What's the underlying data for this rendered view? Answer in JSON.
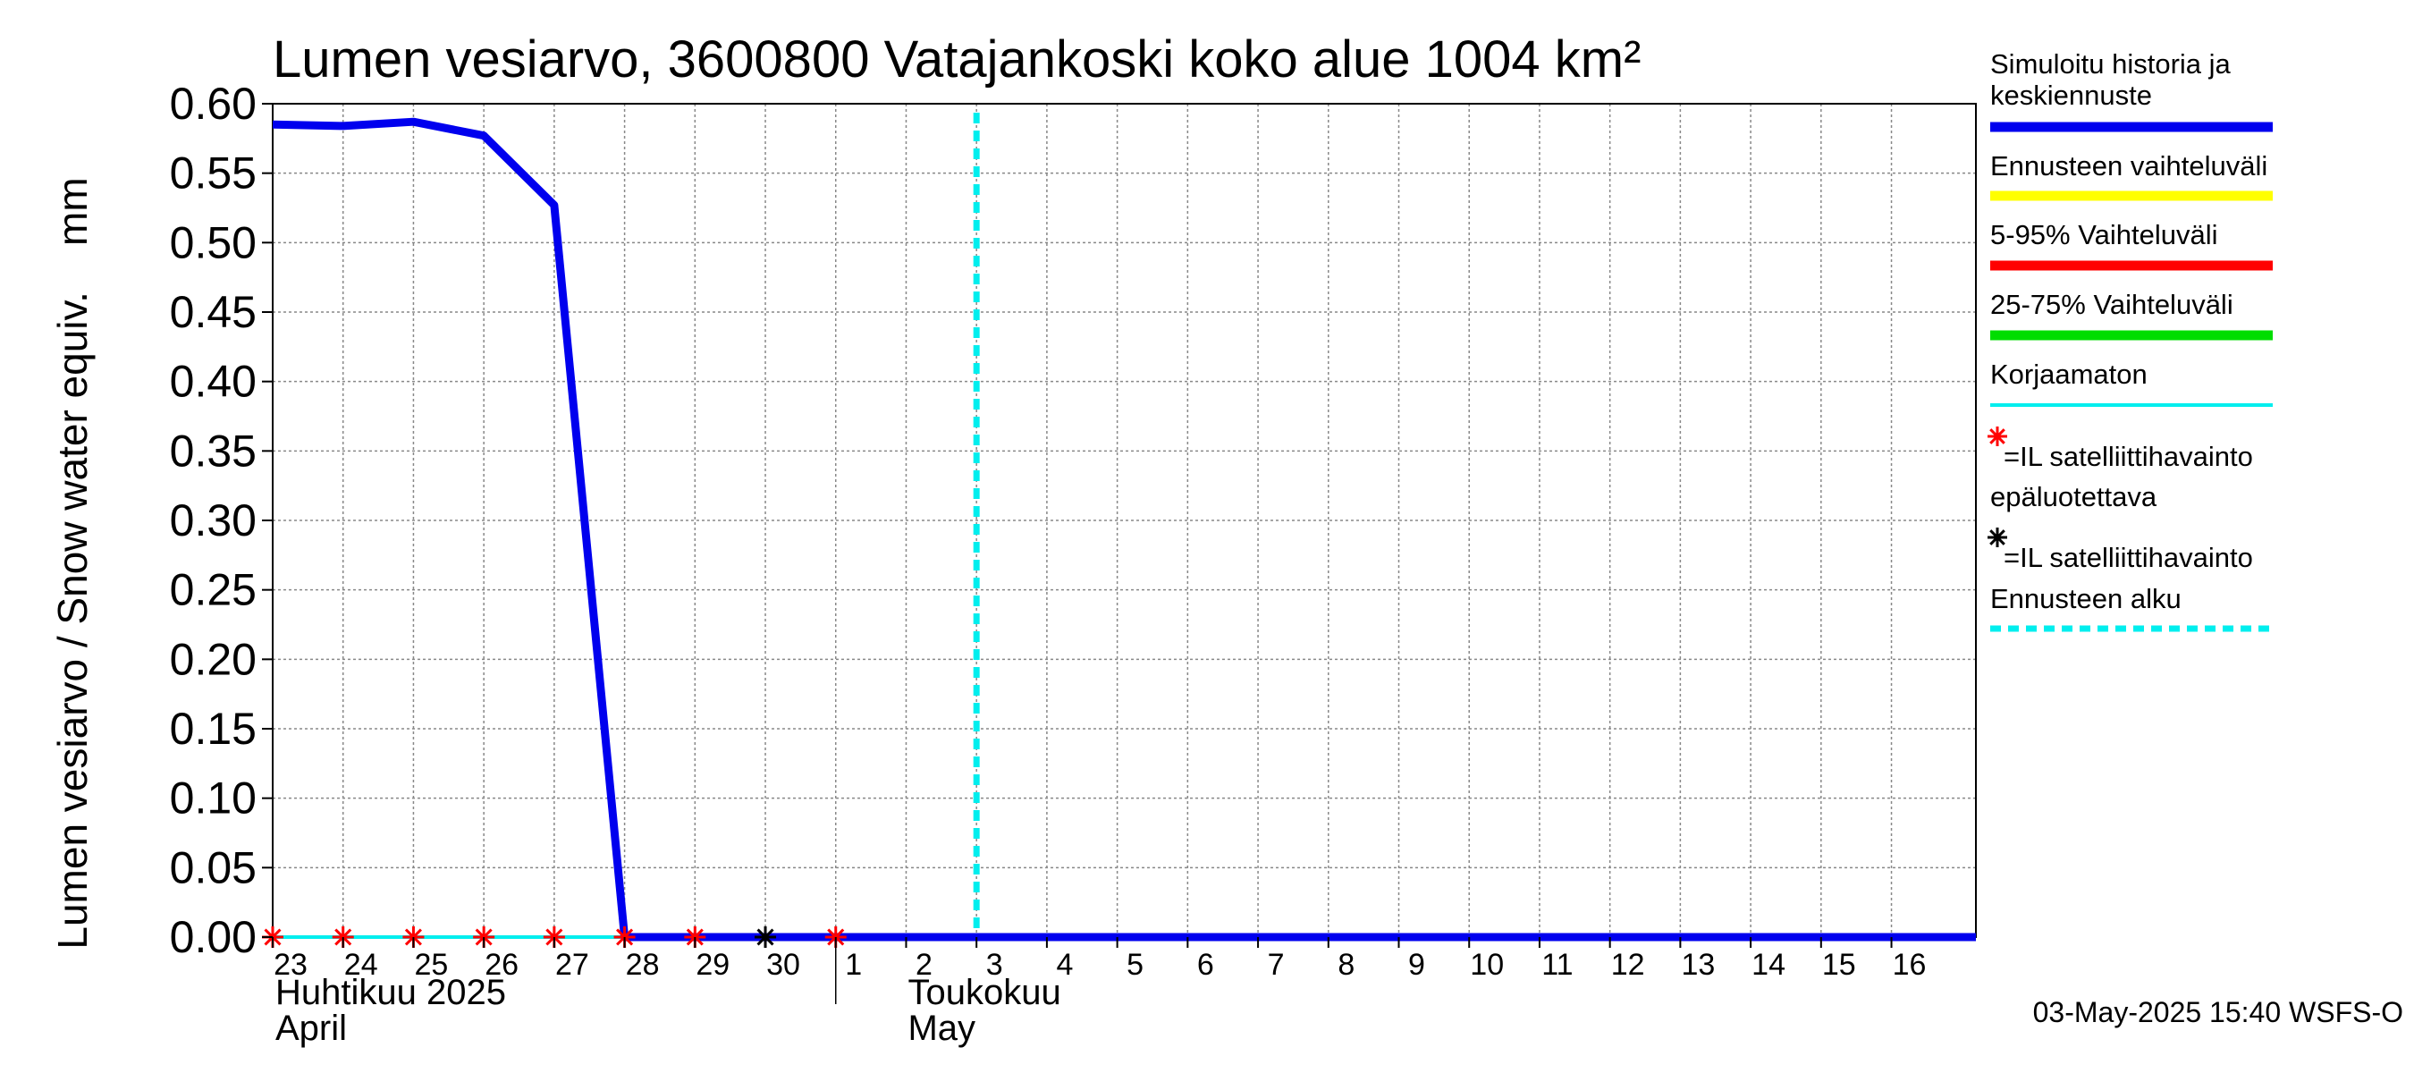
{
  "chart_data": {
    "type": "line",
    "title": "Lumen vesiarvo, 3600800 Vatajankoski koko alue 1004 km²",
    "ylabel": "Lumen vesiarvo / Snow water equiv.    mm",
    "ylim": [
      0,
      0.6
    ],
    "y_ticks": [
      "0.00",
      "0.05",
      "0.10",
      "0.15",
      "0.20",
      "0.25",
      "0.30",
      "0.35",
      "0.40",
      "0.45",
      "0.50",
      "0.55",
      "0.60"
    ],
    "x_day_labels": [
      "23",
      "24",
      "25",
      "26",
      "27",
      "28",
      "29",
      "30",
      "1",
      "2",
      "3",
      "4",
      "5",
      "6",
      "7",
      "8",
      "9",
      "10",
      "11",
      "12",
      "13",
      "14",
      "15",
      "16"
    ],
    "x_range_days": [
      0,
      24.2
    ],
    "month_labels": [
      {
        "line1": "Huhtikuu  2025",
        "line2": "April",
        "day_index": 0
      },
      {
        "line1": "Toukokuu",
        "line2": "May",
        "day_index": 9
      }
    ],
    "grid": true,
    "series": [
      {
        "name": "Simuloitu historia ja keskiennuste",
        "color": "#0000ee",
        "x": [
          0,
          1,
          2,
          3,
          4,
          5,
          6,
          7,
          8,
          9,
          10,
          11,
          12,
          13,
          14,
          15,
          16,
          17,
          18,
          19,
          20,
          21,
          22,
          23,
          24.2
        ],
        "values": [
          0.585,
          0.584,
          0.587,
          0.577,
          0.527,
          0.0,
          0.0,
          0.0,
          0.0,
          0.0,
          0.0,
          0.0,
          0.0,
          0.0,
          0.0,
          0.0,
          0.0,
          0.0,
          0.0,
          0.0,
          0.0,
          0.0,
          0.0,
          0.0,
          0.0
        ]
      },
      {
        "name": "Korjaamaton",
        "color": "#00eeee",
        "x": [
          0,
          5,
          8
        ],
        "values": [
          0.0,
          0.0,
          0.0
        ]
      }
    ],
    "satellite_unreliable": {
      "color": "#ff0000",
      "x": [
        0,
        1,
        2,
        3,
        4,
        5,
        6,
        8
      ],
      "values": [
        0,
        0,
        0,
        0,
        0,
        0,
        0,
        0
      ]
    },
    "satellite_reliable": {
      "color": "#000000",
      "x": [
        7
      ],
      "values": [
        0
      ]
    },
    "forecast_start_x": 10,
    "legend": {
      "placement": "right",
      "items": [
        {
          "label": [
            "Simuloitu historia ja",
            "keskiennuste"
          ],
          "color": "#0000ee",
          "kind": "line"
        },
        {
          "label": [
            "Ennusteen vaihteluväli"
          ],
          "color": "#ffff00",
          "kind": "line"
        },
        {
          "label": [
            "5-95% Vaihteluväli"
          ],
          "color": "#ff0000",
          "kind": "line"
        },
        {
          "label": [
            "25-75% Vaihteluväli"
          ],
          "color": "#00dd00",
          "kind": "line"
        },
        {
          "label": [
            "Korjaamaton"
          ],
          "color": "#00eeee",
          "kind": "thin"
        },
        {
          "label": [
            "=IL satelliittihavainto",
            "epäluotettava"
          ],
          "color": "#ff0000",
          "kind": "star"
        },
        {
          "label": [
            "=IL satelliittihavainto"
          ],
          "color": "#000000",
          "kind": "star"
        },
        {
          "label": [
            "Ennusteen alku"
          ],
          "color": "#00eeee",
          "kind": "dashed"
        }
      ]
    }
  },
  "footer": {
    "timestamp": "03-May-2025 15:40 WSFS-O"
  }
}
